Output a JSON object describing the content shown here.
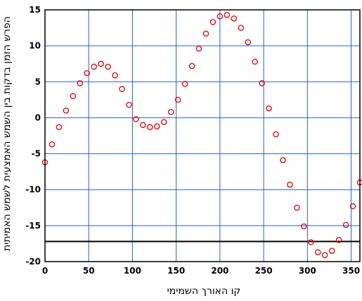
{
  "chart_data": {
    "type": "scatter",
    "xlabel": "קו האורך השמימי",
    "ylabel": "הפרש הזמן בדקות בין השמש האמצעית לשמש האמיתית",
    "xlim": [
      0,
      360
    ],
    "ylim": [
      -20,
      15
    ],
    "xticks": [
      0,
      50,
      100,
      150,
      200,
      250,
      300,
      350
    ],
    "yticks": [
      15,
      10,
      5,
      0,
      -5,
      -10,
      -15,
      -20
    ],
    "grid": true,
    "reference_line_y": -17.2,
    "colors": {
      "marker": "#e01010",
      "grid": "#2b5cd6",
      "line": "#000000"
    },
    "series": [
      {
        "marker": "open-circle",
        "x": [
          0,
          8,
          16,
          24,
          32,
          40,
          48,
          56,
          64,
          72,
          80,
          88,
          96,
          104,
          112,
          120,
          128,
          136,
          144,
          152,
          160,
          168,
          176,
          184,
          192,
          200,
          208,
          216,
          224,
          232,
          240,
          248,
          256,
          264,
          272,
          280,
          288,
          296,
          304,
          312,
          320,
          328,
          336,
          344,
          352,
          360
        ],
        "y": [
          -6.2,
          -3.7,
          -1.3,
          1.0,
          3.0,
          4.8,
          6.2,
          7.1,
          7.5,
          7.1,
          5.9,
          4.0,
          1.8,
          -0.2,
          -1.0,
          -1.3,
          -1.2,
          -0.6,
          0.8,
          2.5,
          4.7,
          7.2,
          9.6,
          11.7,
          13.3,
          14.1,
          14.3,
          13.8,
          12.5,
          10.5,
          7.8,
          4.8,
          1.3,
          -2.3,
          -5.9,
          -9.3,
          -12.5,
          -15.1,
          -17.3,
          -18.7,
          -19.1,
          -18.5,
          -17.0,
          -14.9,
          -12.3,
          -9.0
        ]
      }
    ]
  }
}
